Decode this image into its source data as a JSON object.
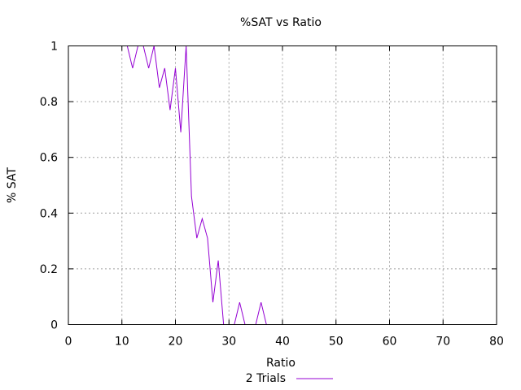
{
  "chart_data": {
    "type": "line",
    "title": "%SAT vs Ratio",
    "xlabel": "Ratio",
    "ylabel": "% SAT",
    "xlim": [
      0,
      80
    ],
    "ylim": [
      0,
      1
    ],
    "xticks": [
      "0",
      "10",
      "20",
      "30",
      "40",
      "50",
      "60",
      "70",
      "80"
    ],
    "yticks": [
      "0",
      "0.2",
      "0.4",
      "0.6",
      "0.8",
      "1"
    ],
    "grid": true,
    "legend": "bottom-center",
    "series": [
      {
        "name": "2 Trials",
        "color": "#9400d3",
        "x": [
          1,
          2,
          3,
          4,
          5,
          6,
          7,
          8,
          9,
          10,
          11,
          12,
          13,
          14,
          15,
          16,
          17,
          18,
          19,
          20,
          21,
          22,
          23,
          24,
          25,
          26,
          27,
          28,
          29,
          30,
          31,
          32,
          33,
          34,
          35,
          36,
          37,
          38,
          39,
          40,
          45,
          50,
          55,
          60,
          65,
          70,
          75,
          80
        ],
        "y": [
          1,
          1,
          1,
          1,
          1,
          1,
          1,
          1,
          1,
          1,
          1,
          0.92,
          1,
          1,
          0.92,
          1,
          0.85,
          0.92,
          0.77,
          0.92,
          0.69,
          1,
          0.46,
          0.31,
          0.38,
          0.31,
          0.08,
          0.23,
          0,
          0,
          0,
          0.08,
          0,
          0,
          0,
          0.08,
          0,
          0,
          0,
          0,
          0,
          0,
          0,
          0,
          0,
          0,
          0,
          0
        ]
      }
    ]
  }
}
